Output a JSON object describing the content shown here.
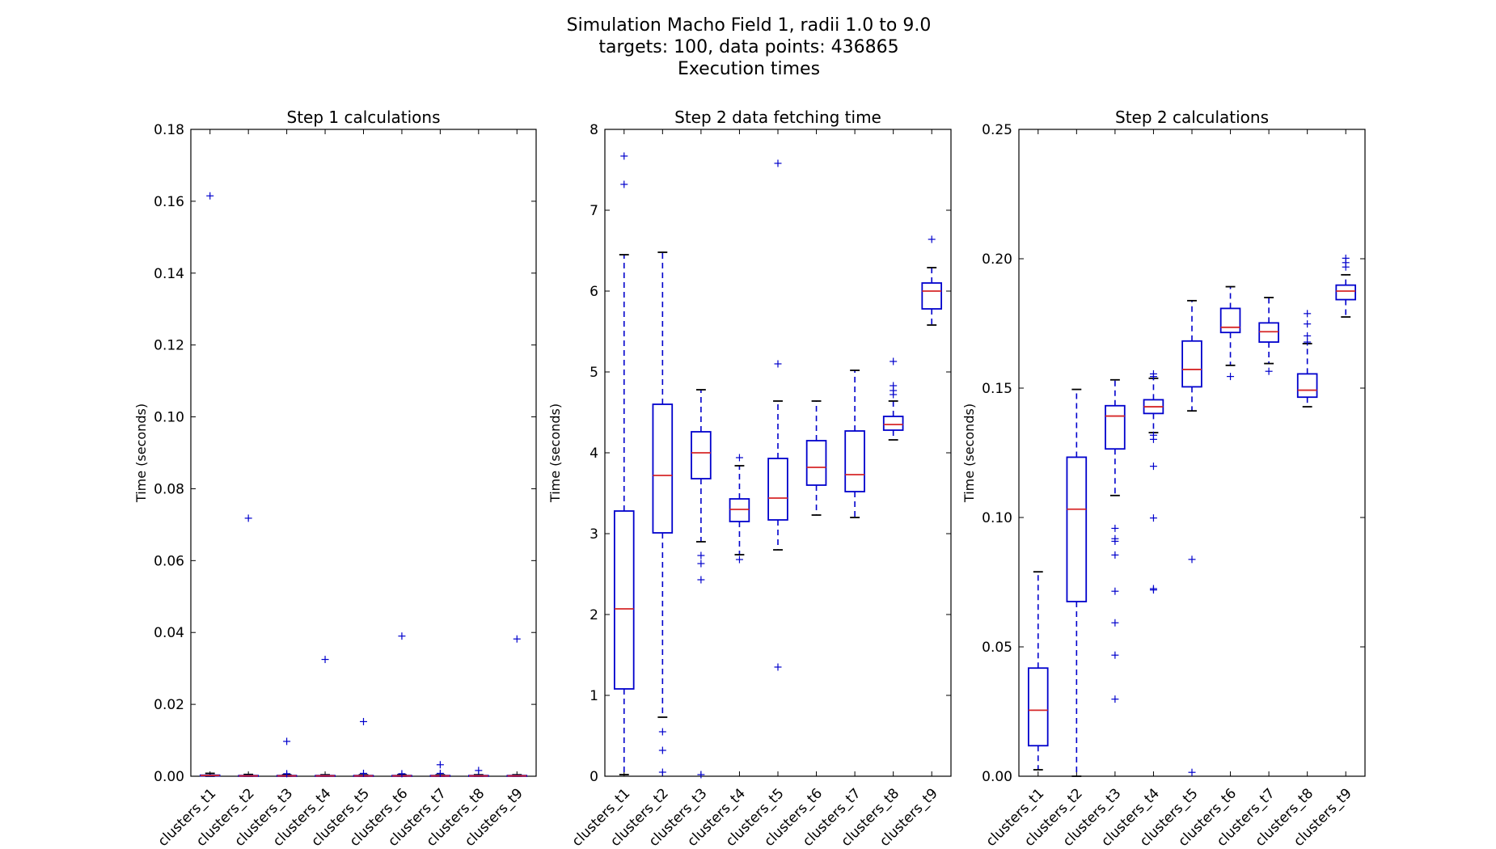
{
  "figure": {
    "title_lines": [
      "Simulation Macho Field 1, radii 1.0 to 9.0",
      "targets: 100,   data points: 436865",
      "Execution times"
    ]
  },
  "colors": {
    "box": "#0000cc",
    "median": "#d62728",
    "cap": "#000000",
    "flier": "#0000cc",
    "axes": "#000000",
    "background": "#ffffff"
  },
  "chart_data": [
    {
      "type": "box",
      "title": "Step 1 calculations",
      "xlabel": "",
      "ylabel": "Time (seconds)",
      "ylim": [
        0,
        0.18
      ],
      "yticks": [
        0.0,
        0.02,
        0.04,
        0.06,
        0.08,
        0.1,
        0.12,
        0.14,
        0.16,
        0.18
      ],
      "ytick_labels": [
        "0.00",
        "0.02",
        "0.04",
        "0.06",
        "0.08",
        "0.10",
        "0.12",
        "0.14",
        "0.16",
        "0.18"
      ],
      "categories": [
        "clusters_t1",
        "clusters_t2",
        "clusters_t3",
        "clusters_t4",
        "clusters_t5",
        "clusters_t6",
        "clusters_t7",
        "clusters_t8",
        "clusters_t9"
      ],
      "boxes": [
        {
          "whislo": 0.0,
          "q1": 0.0001,
          "med": 0.0002,
          "q3": 0.0003,
          "whishi": 0.0008,
          "fliers": [
            0.1615
          ]
        },
        {
          "whislo": 0.0,
          "q1": 0.0,
          "med": 0.0001,
          "q3": 0.0002,
          "whishi": 0.0005,
          "fliers": [
            0.0718
          ]
        },
        {
          "whislo": 0.0,
          "q1": 0.0,
          "med": 0.0001,
          "q3": 0.0002,
          "whishi": 0.0004,
          "fliers": [
            0.0097,
            0.0007
          ]
        },
        {
          "whislo": 0.0,
          "q1": 0.0,
          "med": 0.0001,
          "q3": 0.0002,
          "whishi": 0.0004,
          "fliers": [
            0.0325
          ]
        },
        {
          "whislo": 0.0,
          "q1": 0.0,
          "med": 0.0001,
          "q3": 0.0002,
          "whishi": 0.0004,
          "fliers": [
            0.0152,
            0.0008
          ]
        },
        {
          "whislo": 0.0,
          "q1": 0.0,
          "med": 0.0001,
          "q3": 0.0002,
          "whishi": 0.0004,
          "fliers": [
            0.039,
            0.0007
          ]
        },
        {
          "whislo": 0.0,
          "q1": 0.0,
          "med": 0.0001,
          "q3": 0.0002,
          "whishi": 0.0004,
          "fliers": [
            0.0032,
            0.0008
          ]
        },
        {
          "whislo": 0.0,
          "q1": 0.0,
          "med": 0.0001,
          "q3": 0.0002,
          "whishi": 0.0004,
          "fliers": [
            0.0016
          ]
        },
        {
          "whislo": 0.0,
          "q1": 0.0,
          "med": 0.0001,
          "q3": 0.0002,
          "whishi": 0.0004,
          "fliers": [
            0.0382
          ]
        }
      ]
    },
    {
      "type": "box",
      "title": "Step 2 data fetching time",
      "xlabel": "",
      "ylabel": "Time (seconds)",
      "ylim": [
        0,
        8
      ],
      "yticks": [
        0,
        1,
        2,
        3,
        4,
        5,
        6,
        7,
        8
      ],
      "ytick_labels": [
        "0",
        "1",
        "2",
        "3",
        "4",
        "5",
        "6",
        "7",
        "8"
      ],
      "categories": [
        "clusters_t1",
        "clusters_t2",
        "clusters_t3",
        "clusters_t4",
        "clusters_t5",
        "clusters_t6",
        "clusters_t7",
        "clusters_t8",
        "clusters_t9"
      ],
      "boxes": [
        {
          "whislo": 0.02,
          "q1": 1.08,
          "med": 2.07,
          "q3": 3.28,
          "whishi": 6.45,
          "fliers": [
            7.67,
            7.32
          ]
        },
        {
          "whislo": 0.73,
          "q1": 3.01,
          "med": 3.72,
          "q3": 4.6,
          "whishi": 6.48,
          "fliers": [
            0.55,
            0.32,
            0.05
          ]
        },
        {
          "whislo": 2.9,
          "q1": 3.68,
          "med": 4.0,
          "q3": 4.26,
          "whishi": 4.78,
          "fliers": [
            2.73,
            2.63,
            2.43,
            0.02
          ]
        },
        {
          "whislo": 2.74,
          "q1": 3.15,
          "med": 3.3,
          "q3": 3.43,
          "whishi": 3.84,
          "fliers": [
            3.94,
            2.68
          ]
        },
        {
          "whislo": 2.8,
          "q1": 3.17,
          "med": 3.44,
          "q3": 3.93,
          "whishi": 4.64,
          "fliers": [
            7.58,
            5.1,
            1.35
          ]
        },
        {
          "whislo": 3.23,
          "q1": 3.6,
          "med": 3.82,
          "q3": 4.15,
          "whishi": 4.64,
          "fliers": []
        },
        {
          "whislo": 3.2,
          "q1": 3.52,
          "med": 3.73,
          "q3": 4.27,
          "whishi": 5.02,
          "fliers": []
        },
        {
          "whislo": 4.16,
          "q1": 4.28,
          "med": 4.35,
          "q3": 4.45,
          "whishi": 4.64,
          "fliers": [
            5.13,
            4.83,
            4.77,
            4.72
          ]
        },
        {
          "whislo": 5.58,
          "q1": 5.78,
          "med": 6.0,
          "q3": 6.1,
          "whishi": 6.29,
          "fliers": [
            6.64
          ]
        }
      ]
    },
    {
      "type": "box",
      "title": "Step 2 calculations",
      "xlabel": "",
      "ylabel": "Time (seconds)",
      "ylim": [
        0,
        0.25
      ],
      "yticks": [
        0.0,
        0.05,
        0.1,
        0.15,
        0.2,
        0.25
      ],
      "ytick_labels": [
        "0.00",
        "0.05",
        "0.10",
        "0.15",
        "0.20",
        "0.25"
      ],
      "categories": [
        "clusters_t1",
        "clusters_t2",
        "clusters_t3",
        "clusters_t4",
        "clusters_t5",
        "clusters_t6",
        "clusters_t7",
        "clusters_t8",
        "clusters_t9"
      ],
      "boxes": [
        {
          "whislo": 0.0025,
          "q1": 0.0118,
          "med": 0.0255,
          "q3": 0.0418,
          "whishi": 0.079,
          "fliers": []
        },
        {
          "whislo": 0.0,
          "q1": 0.0675,
          "med": 0.1032,
          "q3": 0.1233,
          "whishi": 0.1495,
          "fliers": []
        },
        {
          "whislo": 0.1085,
          "q1": 0.1265,
          "med": 0.1392,
          "q3": 0.1432,
          "whishi": 0.1532,
          "fliers": [
            0.0958,
            0.0918,
            0.0908,
            0.0855,
            0.0715,
            0.0593,
            0.0468,
            0.0298
          ]
        },
        {
          "whislo": 0.1328,
          "q1": 0.1402,
          "med": 0.1428,
          "q3": 0.1455,
          "whishi": 0.1538,
          "fliers": [
            0.1555,
            0.1545,
            0.1318,
            0.1302,
            0.1198,
            0.0998,
            0.0725,
            0.072
          ]
        },
        {
          "whislo": 0.1412,
          "q1": 0.1505,
          "med": 0.1572,
          "q3": 0.1682,
          "whishi": 0.1838,
          "fliers": [
            0.0838,
            0.0015
          ]
        },
        {
          "whislo": 0.1588,
          "q1": 0.1715,
          "med": 0.1735,
          "q3": 0.1808,
          "whishi": 0.1892,
          "fliers": [
            0.1545
          ]
        },
        {
          "whislo": 0.1595,
          "q1": 0.1678,
          "med": 0.1718,
          "q3": 0.1752,
          "whishi": 0.185,
          "fliers": [
            0.1565
          ]
        },
        {
          "whislo": 0.1428,
          "q1": 0.1465,
          "med": 0.1492,
          "q3": 0.1555,
          "whishi": 0.1672,
          "fliers": [
            0.1788,
            0.1748,
            0.1702,
            0.1678
          ]
        },
        {
          "whislo": 0.1775,
          "q1": 0.1842,
          "med": 0.1875,
          "q3": 0.1898,
          "whishi": 0.1938,
          "fliers": [
            0.2002,
            0.1985,
            0.1968
          ]
        }
      ]
    }
  ]
}
